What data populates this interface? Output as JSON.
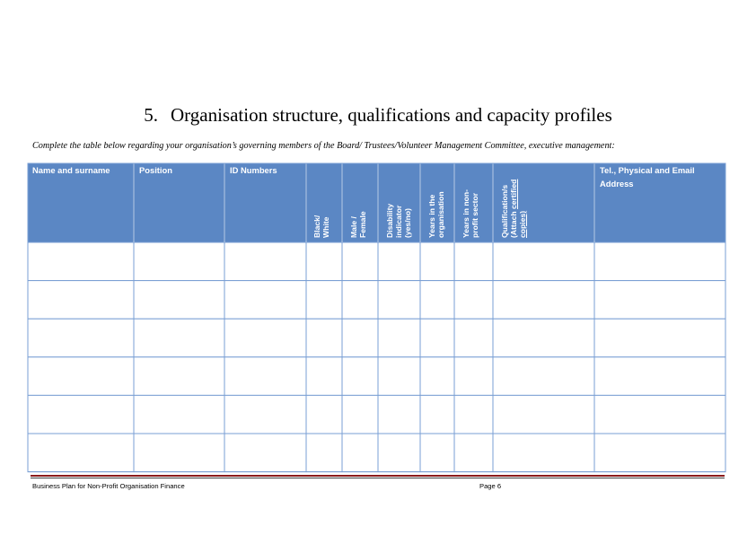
{
  "section": {
    "number": "5.",
    "title": "Organisation structure, qualifications and capacity profiles"
  },
  "instructions": "Complete the table below regarding your organisation’s governing members of the Board/ Trustees/Volunteer Management Committee, executive management:",
  "table": {
    "headers": {
      "name": "Name and surname",
      "position": "Position",
      "id_numbers": "ID Numbers",
      "black_white": [
        "Black/",
        "White"
      ],
      "male_female": [
        "Male /",
        "Female"
      ],
      "disability": [
        "Disability",
        "indicator",
        "(yes/no)"
      ],
      "years_org": [
        "Years in the",
        "organisation"
      ],
      "years_npo": [
        "Years in non-",
        "profit sector"
      ],
      "qualifications": [
        "Qualification/s",
        "(Attach ",
        "certified",
        "copies)"
      ],
      "contact": [
        "Tel., Physical and Email",
        "Address"
      ]
    },
    "row_count": 6,
    "header_color": "#5b87c4",
    "border_color": "#7a9fd4"
  },
  "footer": {
    "left": "Business Plan for Non-Profit Organisation Finance",
    "right": "Page 6"
  }
}
